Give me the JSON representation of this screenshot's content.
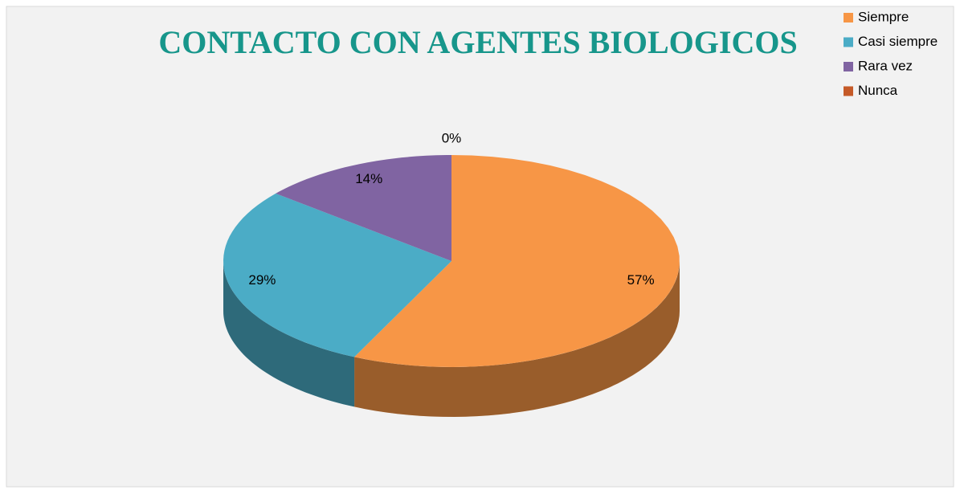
{
  "chart_data": {
    "type": "pie3d",
    "title": "CONTACTO CON AGENTES BIOLOGICOS",
    "categories": [
      "Siempre",
      "Casi siempre",
      "Rara vez",
      "Nunca"
    ],
    "values": [
      57,
      29,
      14,
      0
    ],
    "value_labels": [
      "57%",
      "29%",
      "14%",
      "0%"
    ],
    "colors": [
      "#f79646",
      "#4bacc6",
      "#8064a2",
      "#c55a28"
    ],
    "legend": "top-right"
  }
}
